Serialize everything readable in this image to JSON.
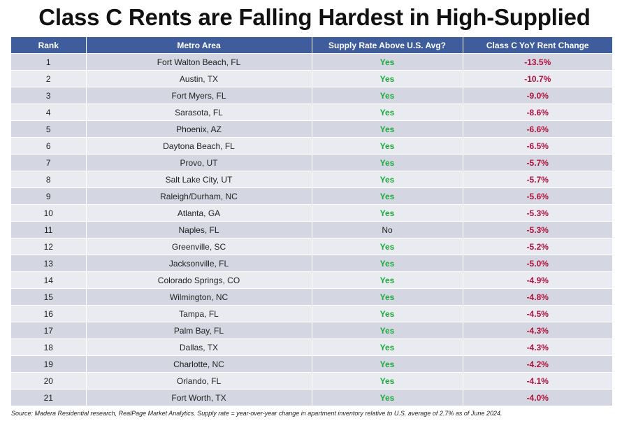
{
  "title": "Class C Rents are Falling Hardest in High-Supplied Markets",
  "footnote": "Source: Madera Residential research, RealPage Market Analytics. Supply rate = year-over-year change in apartment inventory relative to U.S. average of 2.7% as of June 2024.",
  "colors": {
    "header_bg": "#3f5d9c",
    "row_odd": "#d4d7e1",
    "row_even": "#e9ebf1",
    "yes": "#1faa3e",
    "change": "#b0103a"
  },
  "chart_data": {
    "type": "table",
    "columns": [
      "Rank",
      "Metro Area",
      "Supply Rate Above U.S. Avg?",
      "Class C YoY Rent Change"
    ],
    "rows": [
      [
        "1",
        "Fort Walton Beach, FL",
        "Yes",
        "-13.5%"
      ],
      [
        "2",
        "Austin, TX",
        "Yes",
        "-10.7%"
      ],
      [
        "3",
        "Fort Myers, FL",
        "Yes",
        "-9.0%"
      ],
      [
        "4",
        "Sarasota, FL",
        "Yes",
        "-8.6%"
      ],
      [
        "5",
        "Phoenix, AZ",
        "Yes",
        "-6.6%"
      ],
      [
        "6",
        "Daytona Beach, FL",
        "Yes",
        "-6.5%"
      ],
      [
        "7",
        "Provo, UT",
        "Yes",
        "-5.7%"
      ],
      [
        "8",
        "Salt Lake City, UT",
        "Yes",
        "-5.7%"
      ],
      [
        "9",
        "Raleigh/Durham, NC",
        "Yes",
        "-5.6%"
      ],
      [
        "10",
        "Atlanta, GA",
        "Yes",
        "-5.3%"
      ],
      [
        "11",
        "Naples, FL",
        "No",
        "-5.3%"
      ],
      [
        "12",
        "Greenville, SC",
        "Yes",
        "-5.2%"
      ],
      [
        "13",
        "Jacksonville, FL",
        "Yes",
        "-5.0%"
      ],
      [
        "14",
        "Colorado Springs, CO",
        "Yes",
        "-4.9%"
      ],
      [
        "15",
        "Wilmington, NC",
        "Yes",
        "-4.8%"
      ],
      [
        "16",
        "Tampa, FL",
        "Yes",
        "-4.5%"
      ],
      [
        "17",
        "Palm Bay, FL",
        "Yes",
        "-4.3%"
      ],
      [
        "18",
        "Dallas, TX",
        "Yes",
        "-4.3%"
      ],
      [
        "19",
        "Charlotte, NC",
        "Yes",
        "-4.2%"
      ],
      [
        "20",
        "Orlando, FL",
        "Yes",
        "-4.1%"
      ],
      [
        "21",
        "Fort Worth, TX",
        "Yes",
        "-4.0%"
      ]
    ]
  }
}
